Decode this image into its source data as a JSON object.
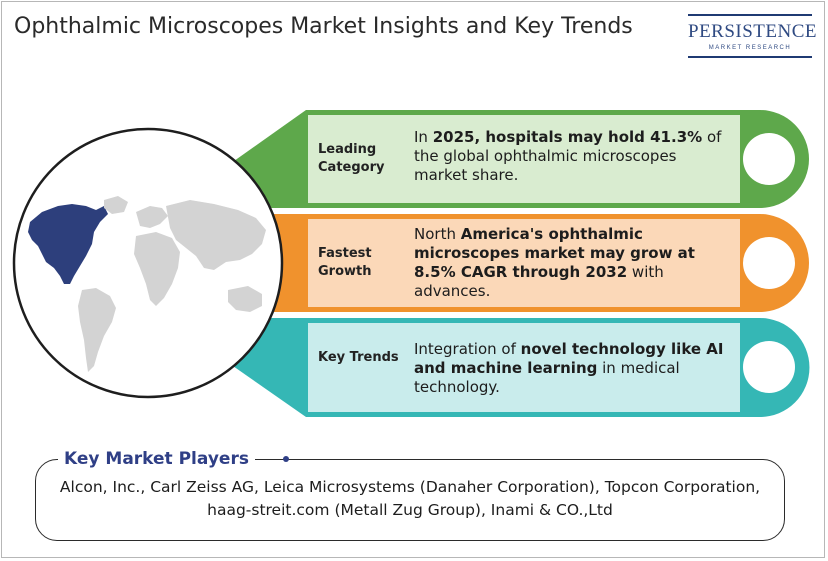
{
  "title": "Ophthalmic Microscopes Market Insights and Key Trends",
  "logo": {
    "name": "PERSISTENCE",
    "tagline": "MARKET RESEARCH"
  },
  "rows": [
    {
      "category": "Leading Category",
      "text_parts": [
        {
          "t": "In ",
          "bold": false
        },
        {
          "t": "2025, hospitals may hold 41.3%",
          "bold": true
        },
        {
          "t": " of the global ophthalmic microscopes market share.",
          "bold": false
        }
      ],
      "color": "#5ea84b",
      "light": "#d9ecd0"
    },
    {
      "category": "Fastest Growth",
      "text_parts": [
        {
          "t": "North ",
          "bold": false
        },
        {
          "t": "America's ophthalmic microscopes market may grow at 8.5% CAGR through 2032",
          "bold": true
        },
        {
          "t": " with advances.",
          "bold": false
        }
      ],
      "color": "#f0922d",
      "light": "#fbd8b8"
    },
    {
      "category": "Key Trends",
      "text_parts": [
        {
          "t": "Integration of ",
          "bold": false
        },
        {
          "t": "novel technology like AI and machine learning",
          "bold": true
        },
        {
          "t": " in medical technology.",
          "bold": false
        }
      ],
      "color": "#35b7b5",
      "light": "#c9ecec"
    }
  ],
  "players": {
    "heading": "Key Market Players",
    "list": "Alcon, Inc., Carl Zeiss AG, Leica Microsystems (Danaher Corporation), Topcon Corporation, haag-streit.com (Metall Zug Group), Inami & CO.,Ltd"
  },
  "map": {
    "highlight_region": "North America",
    "highlight_color": "#2d3f7c",
    "base_color": "#d3d3d3"
  }
}
